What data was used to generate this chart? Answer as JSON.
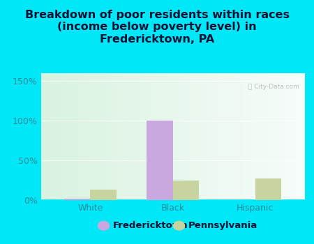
{
  "title": "Breakdown of poor residents within races\n(income below poverty level) in\nFredericktown, PA",
  "categories": [
    "White",
    "Black",
    "Hispanic"
  ],
  "fredericktown": [
    2,
    100,
    0
  ],
  "pennsylvania": [
    13,
    25,
    27
  ],
  "fredericktown_color": "#c9a8e0",
  "pennsylvania_color": "#c8d4a0",
  "bg_outer": "#00e8f8",
  "bg_inner": "#e8f5ee",
  "ylim": [
    0,
    160
  ],
  "yticks": [
    0,
    50,
    100,
    150
  ],
  "ytick_labels": [
    "0%",
    "50%",
    "100%",
    "150%"
  ],
  "bar_width": 0.32,
  "title_fontsize": 11.5,
  "axis_label_fontsize": 9,
  "legend_fontsize": 9.5,
  "tick_color": "#2a8a9a",
  "title_color": "#111133"
}
